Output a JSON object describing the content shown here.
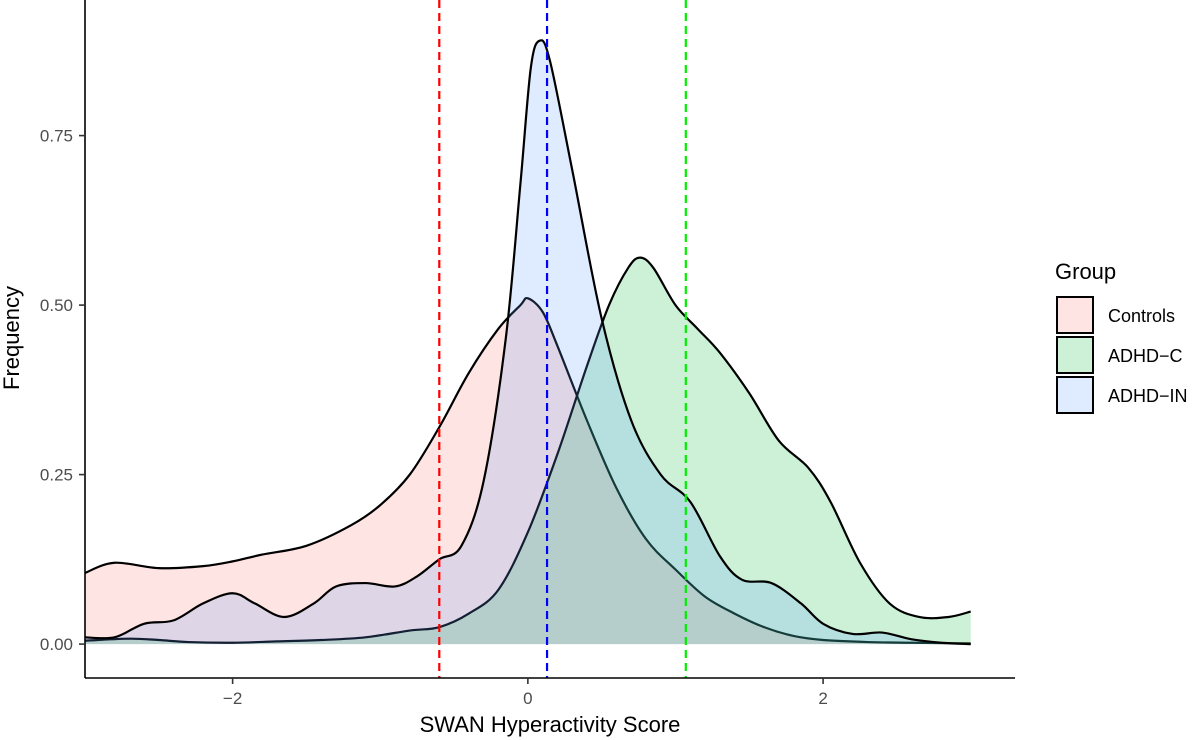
{
  "chart_data": {
    "type": "area",
    "subtype": "density",
    "title": "",
    "xlabel": "SWAN Hyperactivity Score",
    "ylabel": "Frequency",
    "xlim": [
      -3.0,
      3.3
    ],
    "ylim": [
      -0.05,
      0.95
    ],
    "xticks": [
      -2,
      0,
      2
    ],
    "xtick_labels": [
      "−2",
      "0",
      "2"
    ],
    "yticks": [
      0,
      0.25,
      0.5,
      0.75
    ],
    "ytick_labels": [
      "0.00",
      "0.25",
      "0.50",
      "0.75"
    ],
    "grid": false,
    "legend": {
      "title": "Group",
      "position": "right"
    },
    "series": [
      {
        "name": "Controls",
        "fill": "#f8766d",
        "points": [
          [
            -3.0,
            0.105
          ],
          [
            -2.8,
            0.12
          ],
          [
            -2.5,
            0.112
          ],
          [
            -2.2,
            0.115
          ],
          [
            -2.0,
            0.122
          ],
          [
            -1.8,
            0.132
          ],
          [
            -1.5,
            0.145
          ],
          [
            -1.2,
            0.175
          ],
          [
            -1.0,
            0.205
          ],
          [
            -0.8,
            0.25
          ],
          [
            -0.6,
            0.32
          ],
          [
            -0.4,
            0.4
          ],
          [
            -0.2,
            0.465
          ],
          [
            -0.05,
            0.5
          ],
          [
            0.0,
            0.51
          ],
          [
            0.1,
            0.49
          ],
          [
            0.2,
            0.44
          ],
          [
            0.4,
            0.33
          ],
          [
            0.6,
            0.23
          ],
          [
            0.8,
            0.155
          ],
          [
            1.0,
            0.11
          ],
          [
            1.2,
            0.07
          ],
          [
            1.4,
            0.045
          ],
          [
            1.6,
            0.025
          ],
          [
            1.8,
            0.012
          ],
          [
            2.0,
            0.006
          ],
          [
            2.3,
            0.003
          ],
          [
            2.6,
            0.002
          ],
          [
            3.0,
            0.001
          ]
        ]
      },
      {
        "name": "ADHD−C",
        "fill": "#00ba38",
        "points": [
          [
            -3.0,
            0.005
          ],
          [
            -2.7,
            0.008
          ],
          [
            -2.5,
            0.006
          ],
          [
            -2.3,
            0.003
          ],
          [
            -2.0,
            0.002
          ],
          [
            -1.7,
            0.004
          ],
          [
            -1.4,
            0.006
          ],
          [
            -1.1,
            0.01
          ],
          [
            -0.8,
            0.02
          ],
          [
            -0.6,
            0.025
          ],
          [
            -0.4,
            0.045
          ],
          [
            -0.2,
            0.08
          ],
          [
            0.0,
            0.165
          ],
          [
            0.2,
            0.28
          ],
          [
            0.4,
            0.41
          ],
          [
            0.55,
            0.5
          ],
          [
            0.68,
            0.555
          ],
          [
            0.76,
            0.57
          ],
          [
            0.85,
            0.555
          ],
          [
            1.0,
            0.5
          ],
          [
            1.15,
            0.465
          ],
          [
            1.3,
            0.43
          ],
          [
            1.5,
            0.37
          ],
          [
            1.7,
            0.3
          ],
          [
            1.9,
            0.26
          ],
          [
            2.05,
            0.21
          ],
          [
            2.25,
            0.12
          ],
          [
            2.45,
            0.06
          ],
          [
            2.65,
            0.04
          ],
          [
            2.85,
            0.04
          ],
          [
            3.0,
            0.048
          ]
        ]
      },
      {
        "name": "ADHD−IN",
        "fill": "#619cff",
        "points": [
          [
            -3.0,
            0.01
          ],
          [
            -2.8,
            0.01
          ],
          [
            -2.6,
            0.03
          ],
          [
            -2.4,
            0.035
          ],
          [
            -2.2,
            0.06
          ],
          [
            -2.0,
            0.075
          ],
          [
            -1.85,
            0.06
          ],
          [
            -1.65,
            0.04
          ],
          [
            -1.45,
            0.06
          ],
          [
            -1.3,
            0.085
          ],
          [
            -1.1,
            0.09
          ],
          [
            -0.9,
            0.085
          ],
          [
            -0.75,
            0.1
          ],
          [
            -0.6,
            0.125
          ],
          [
            -0.45,
            0.145
          ],
          [
            -0.3,
            0.24
          ],
          [
            -0.15,
            0.45
          ],
          [
            -0.05,
            0.68
          ],
          [
            0.02,
            0.85
          ],
          [
            0.08,
            0.89
          ],
          [
            0.15,
            0.86
          ],
          [
            0.3,
            0.7
          ],
          [
            0.5,
            0.48
          ],
          [
            0.7,
            0.33
          ],
          [
            0.9,
            0.25
          ],
          [
            1.1,
            0.21
          ],
          [
            1.3,
            0.13
          ],
          [
            1.45,
            0.095
          ],
          [
            1.65,
            0.09
          ],
          [
            1.85,
            0.06
          ],
          [
            2.0,
            0.03
          ],
          [
            2.2,
            0.015
          ],
          [
            2.4,
            0.017
          ],
          [
            2.6,
            0.007
          ],
          [
            2.8,
            0.002
          ],
          [
            3.0,
            0.0
          ]
        ]
      }
    ],
    "reference_lines": [
      {
        "group": "Controls",
        "x": -0.6,
        "color": "#ff0000",
        "style": "dashed"
      },
      {
        "group": "ADHD-IN",
        "x": 0.13,
        "color": "#0000ff",
        "style": "dashed"
      },
      {
        "group": "ADHD-C",
        "x": 1.07,
        "color": "#00ee00",
        "style": "dashed"
      }
    ]
  }
}
